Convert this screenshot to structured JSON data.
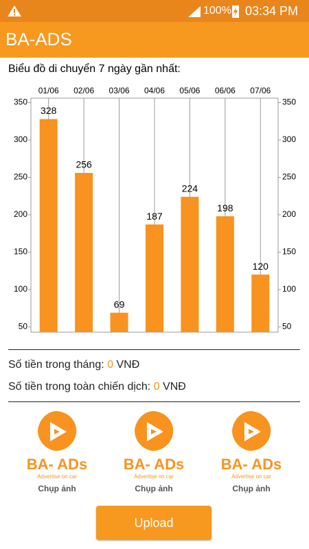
{
  "status_bar": {
    "battery": "100%",
    "time": "03:34 PM"
  },
  "app_bar": {
    "title": "BA-ADS"
  },
  "chart_data": {
    "type": "bar",
    "title": "Biểu đồ di chuyển 7 ngày gần nhất:",
    "categories": [
      "01/06",
      "02/06",
      "03/06",
      "04/06",
      "05/06",
      "06/06",
      "07/06"
    ],
    "values": [
      328,
      256,
      69,
      187,
      224,
      198,
      120
    ],
    "color": "#f7931e",
    "ylim": [
      43,
      356
    ],
    "yticks": [
      50,
      100,
      150,
      200,
      250,
      300,
      350
    ],
    "grid": true
  },
  "summary": [
    {
      "label": "Số tiền trong tháng:",
      "amount": "0",
      "unit": "VNĐ"
    },
    {
      "label": "Số tiền trong toàn chiến dịch:",
      "amount": "0",
      "unit": "VNĐ"
    }
  ],
  "photos": [
    {
      "brand": "BA- ADs",
      "tagline": "Advertise on car",
      "label": "Chụp ảnh"
    },
    {
      "brand": "BA- ADs",
      "tagline": "Advertise on car",
      "label": "Chụp ảnh"
    },
    {
      "brand": "BA- ADs",
      "tagline": "Advertise on car",
      "label": "Chụp ảnh"
    }
  ],
  "upload_button": {
    "label": "Upload"
  }
}
